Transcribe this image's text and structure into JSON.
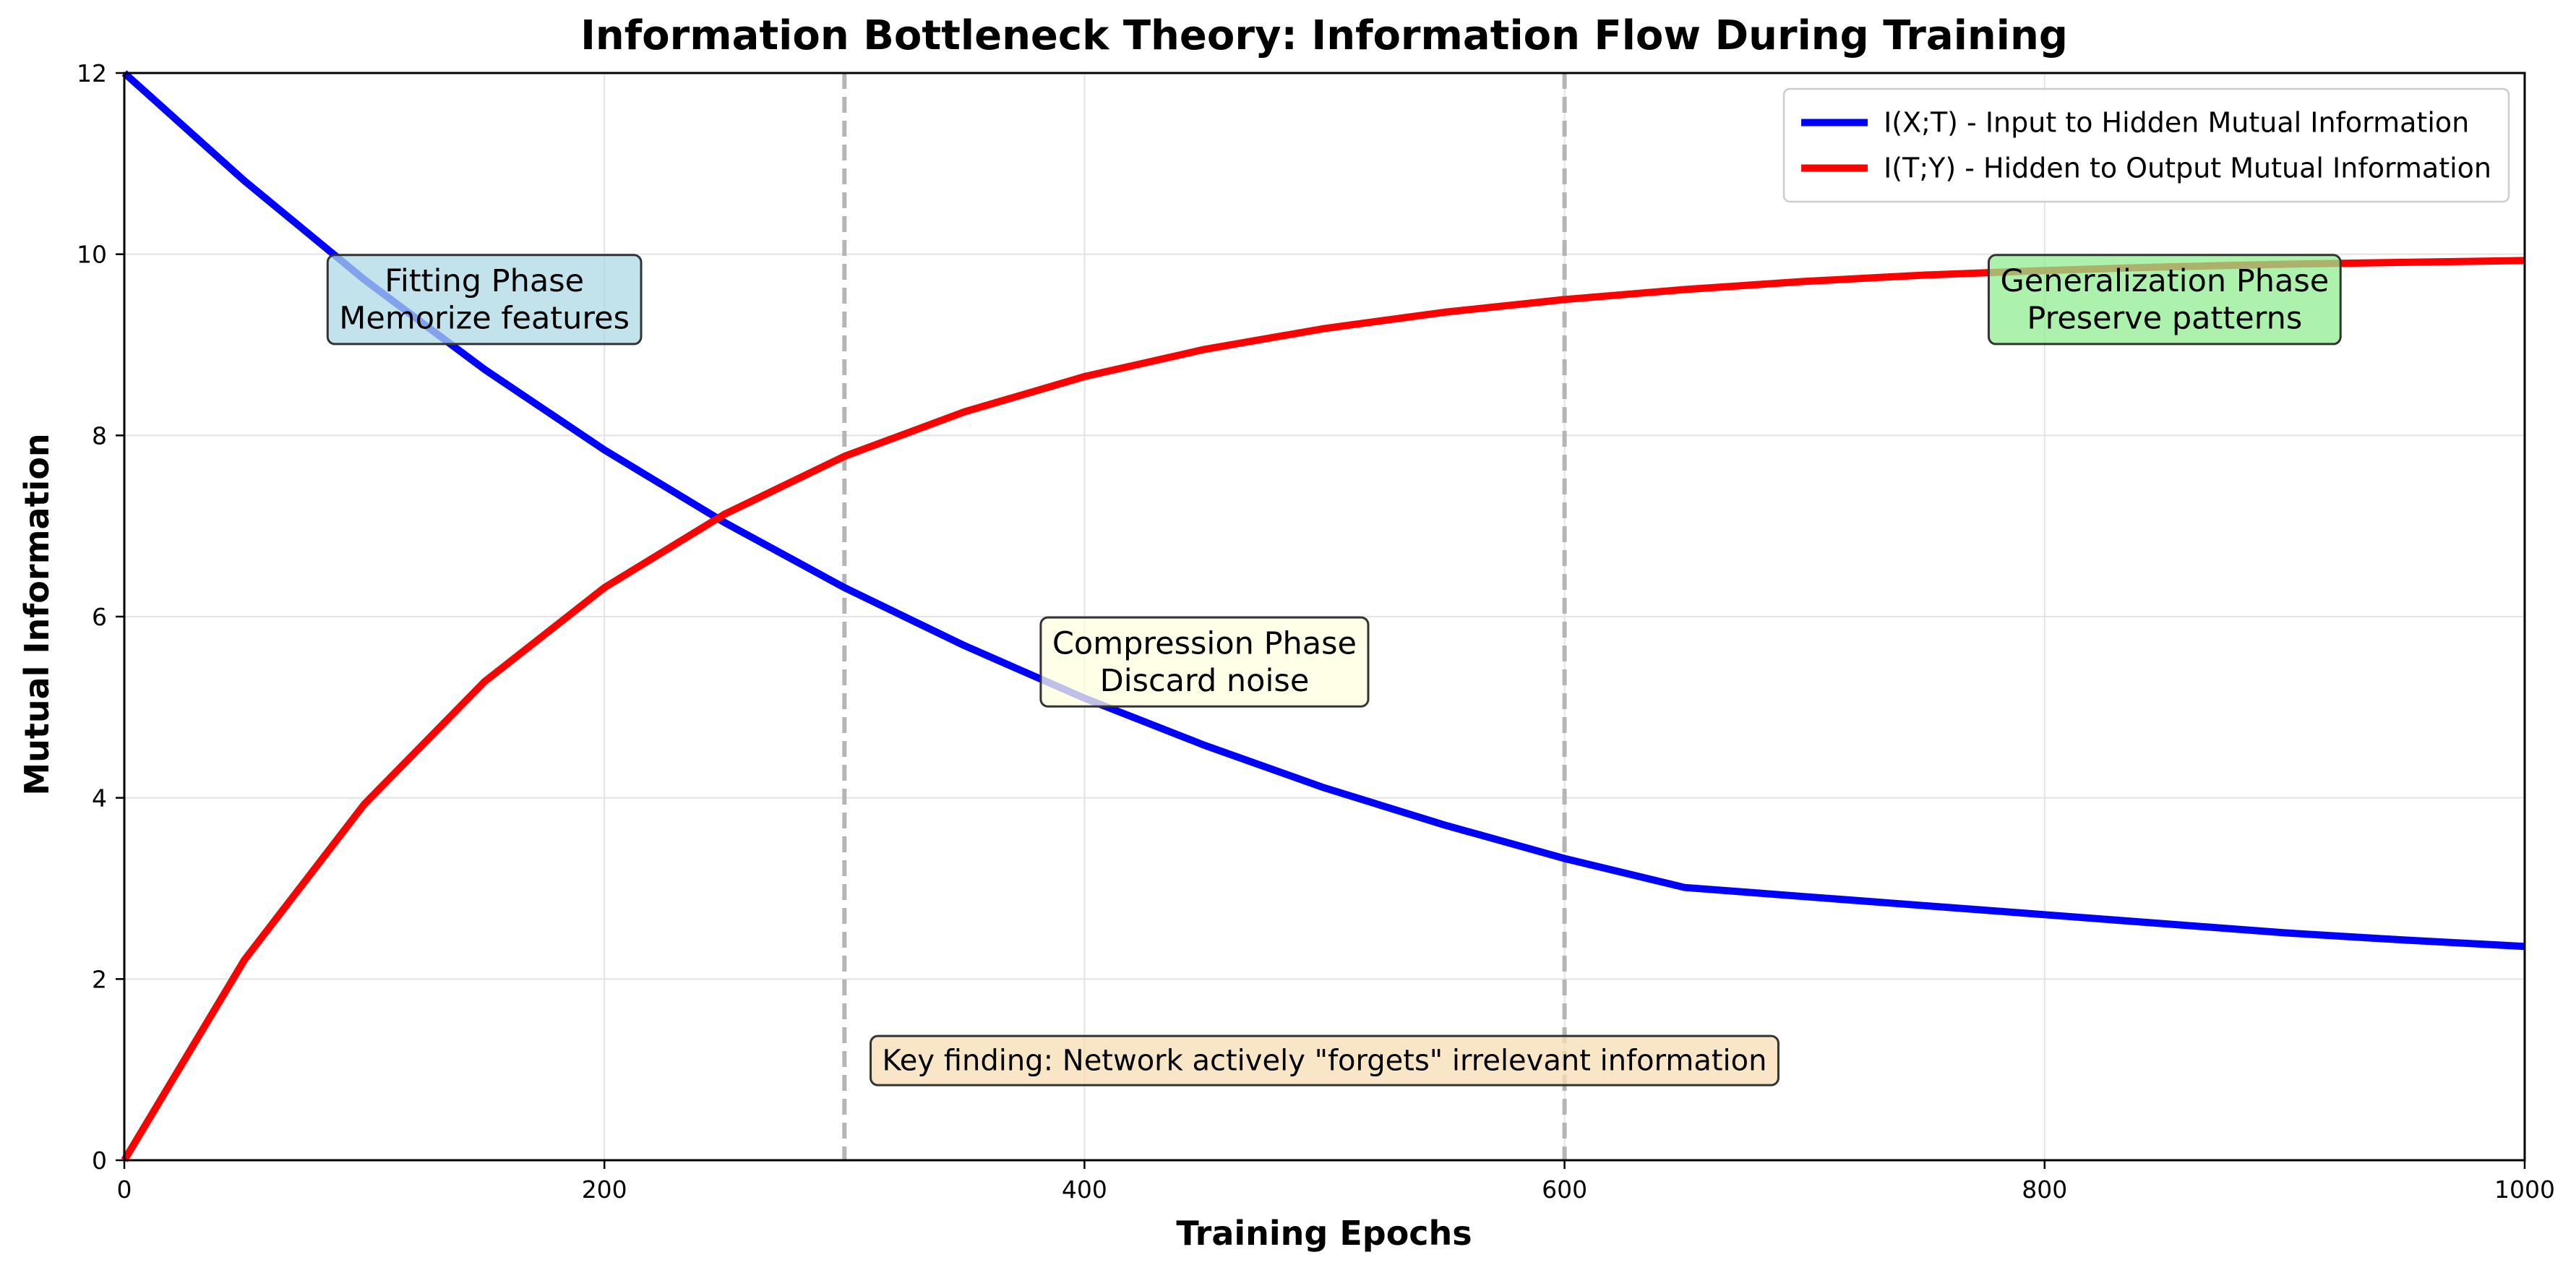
{
  "chart_data": {
    "type": "line",
    "title": "Information Bottleneck Theory: Information Flow During Training",
    "xlabel": "Training Epochs",
    "ylabel": "Mutual Information",
    "xlim": [
      0,
      1000
    ],
    "ylim": [
      0,
      12
    ],
    "xticks": [
      0,
      200,
      400,
      600,
      800,
      1000
    ],
    "yticks": [
      0,
      2,
      4,
      6,
      8,
      10,
      12
    ],
    "xtick_labels": [
      "0",
      "200",
      "400",
      "600",
      "800",
      "1000"
    ],
    "ytick_labels": [
      "0",
      "2",
      "4",
      "6",
      "8",
      "10",
      "12"
    ],
    "grid": true,
    "legend_position": "top-right",
    "series": [
      {
        "name": "I(X;T) - Input to Hidden Mutual Information",
        "color": "#0000ff",
        "x": [
          0,
          50,
          100,
          150,
          200,
          250,
          300,
          350,
          400,
          450,
          500,
          550,
          600,
          650,
          700,
          750,
          800,
          850,
          900,
          950,
          1000
        ],
        "values": [
          12.0,
          10.81,
          9.72,
          8.73,
          7.84,
          7.04,
          6.32,
          5.68,
          5.1,
          4.58,
          4.11,
          3.7,
          3.33,
          3.01,
          2.91,
          2.81,
          2.71,
          2.61,
          2.51,
          2.43,
          2.36
        ]
      },
      {
        "name": "I(T;Y) - Hidden to Output Mutual Information",
        "color": "#ff0000",
        "x": [
          0,
          50,
          100,
          150,
          200,
          250,
          300,
          350,
          400,
          450,
          500,
          550,
          600,
          650,
          700,
          750,
          800,
          850,
          900,
          950,
          1000
        ],
        "values": [
          0.0,
          2.21,
          3.93,
          5.28,
          6.32,
          7.13,
          7.77,
          8.26,
          8.65,
          8.95,
          9.18,
          9.36,
          9.5,
          9.61,
          9.7,
          9.77,
          9.82,
          9.86,
          9.89,
          9.91,
          9.93
        ]
      }
    ],
    "vlines": [
      300,
      600
    ],
    "annotations": [
      {
        "lines": [
          "Fitting Phase",
          "Memorize features"
        ],
        "x": 150,
        "y": 9.5,
        "bg": "#add8e6"
      },
      {
        "lines": [
          "Compression Phase",
          "Discard noise"
        ],
        "x": 450,
        "y": 5.5,
        "bg": "#ffffe0"
      },
      {
        "lines": [
          "Generalization Phase",
          "Preserve patterns"
        ],
        "x": 850,
        "y": 9.5,
        "bg": "#90ee90"
      },
      {
        "lines": [
          "Key finding: Network actively \"forgets\" irrelevant information"
        ],
        "x": 500,
        "y": 1.1,
        "bg": "#f5deb3"
      }
    ]
  }
}
